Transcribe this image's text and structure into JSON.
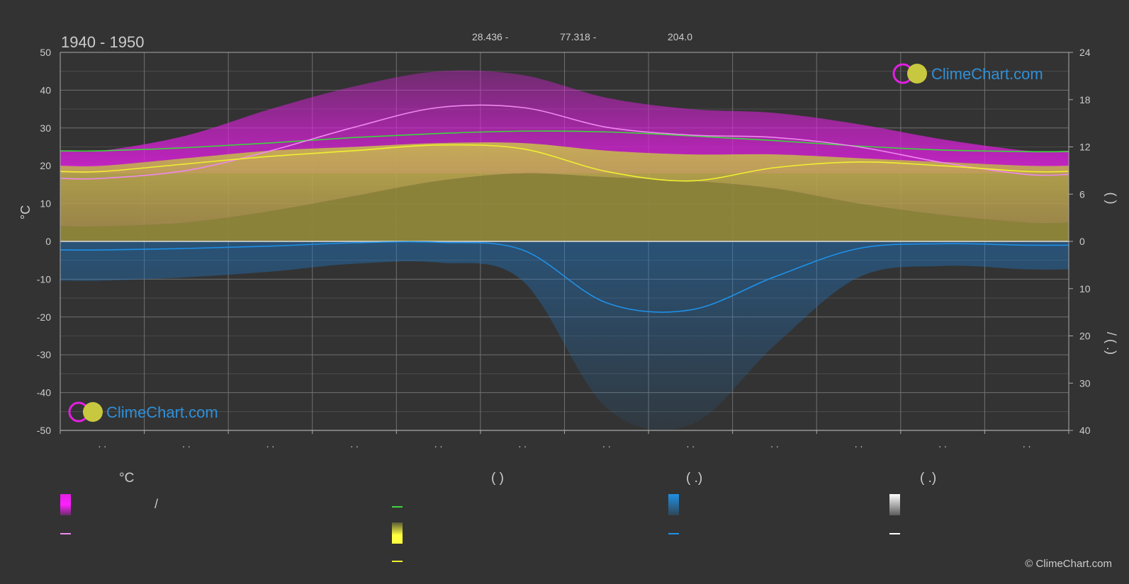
{
  "header": {
    "period": "1940 - 1950",
    "stats": [
      "28.436 -",
      "77.318 -",
      "204.0"
    ]
  },
  "logo": {
    "text": "ClimeChart.com"
  },
  "copyright": "© ClimeChart.com",
  "colors": {
    "background": "#333333",
    "grid": "#777777",
    "sunshine_band": "#e020e0",
    "daylight_line": "#3cd63c",
    "sunshine_line": "#f088f0",
    "temp_band": "#c8c840",
    "temp_line": "#f0f030",
    "precip_band": "#1e78c8",
    "precip_line": "#1f90e6",
    "snow_line": "#ffffff",
    "logo": "#2f8fd8"
  },
  "chart_data": {
    "type": "line",
    "xlabel": "",
    "ylabel_left": "°C",
    "ylim_left": [
      -50,
      50
    ],
    "y_ticks_left": [
      "50",
      "40",
      "30",
      "20",
      "10",
      "0",
      "-10",
      "-20",
      "-30",
      "-40",
      "-50"
    ],
    "y_ticks_right_top": [
      "24",
      "18",
      "12",
      "6",
      "0"
    ],
    "y_ticks_right_bottom": [
      "10",
      "20",
      "30",
      "40"
    ],
    "ylabel_right_top": "(  )",
    "ylabel_right_bottom": "/  (  .)",
    "x_tick_labels": [
      ". .",
      ". .",
      ". .",
      ". .",
      ". .",
      ". .",
      ". .",
      ". .",
      ". .",
      ". .",
      ". .",
      ". ."
    ],
    "months": 12,
    "series": [
      {
        "key": "daylight",
        "values": [
          11.5,
          11.9,
          12.5,
          13.2,
          13.7,
          14.0,
          13.9,
          13.4,
          12.8,
          12.1,
          11.6,
          11.4
        ]
      },
      {
        "key": "sunshine",
        "values": [
          8.0,
          9.0,
          11.5,
          14.5,
          17.0,
          17.0,
          14.5,
          13.5,
          13.2,
          12.0,
          10.0,
          8.5
        ]
      },
      {
        "key": "temp_mean",
        "values": [
          18.5,
          20.5,
          22.5,
          24.0,
          25.5,
          24.5,
          18.5,
          16.0,
          19.5,
          21.0,
          20.0,
          18.5
        ]
      },
      {
        "key": "precip_mean",
        "values": [
          1.8,
          1.5,
          1.0,
          0.3,
          0.2,
          1.8,
          13.0,
          14.5,
          7.5,
          1.5,
          0.5,
          0.8
        ]
      }
    ],
    "bands": {
      "sunshine_max": [
        24,
        28,
        35,
        41,
        45,
        44,
        38,
        35,
        34,
        31,
        27,
        24
      ],
      "temp_max": [
        20,
        22,
        24,
        25,
        26,
        26,
        24,
        23,
        23,
        22,
        21,
        20
      ],
      "temp_min": [
        4,
        5,
        8,
        12,
        16,
        18,
        17,
        16,
        14,
        10,
        7,
        5
      ]
    }
  },
  "legend": {
    "col1": {
      "header": "°C",
      "row1": "/"
    },
    "col2": {
      "header": "(          )"
    },
    "col3": {
      "header": "(   .)"
    },
    "col4": {
      "header": "(   .)"
    }
  }
}
